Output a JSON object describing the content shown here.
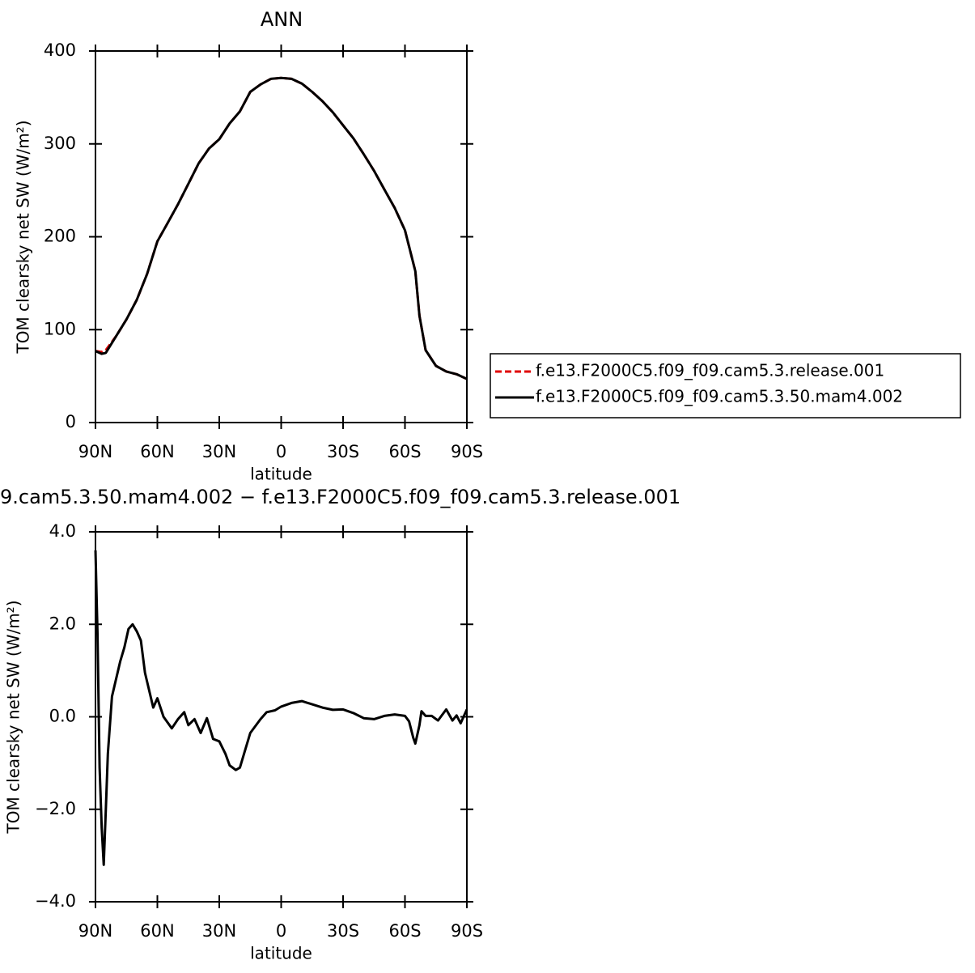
{
  "chart_data": [
    {
      "type": "line",
      "title": "ANN",
      "xlabel": "latitude",
      "ylabel": "TOM clearsky net SW (W/m²)",
      "x": [
        90,
        87,
        85,
        80,
        75,
        70,
        65,
        60,
        55,
        50,
        45,
        40,
        35,
        30,
        25,
        20,
        15,
        10,
        5,
        0,
        -5,
        -10,
        -15,
        -20,
        -25,
        -30,
        -35,
        -40,
        -45,
        -50,
        -55,
        -60,
        -65,
        -67,
        -70,
        -75,
        -80,
        -85,
        -90
      ],
      "series": [
        {
          "name": "f.e13.F2000C5.f09_f09.cam5.3.release.001",
          "color": "#e00000",
          "dash": true,
          "values": [
            77,
            76,
            78,
            93,
            111,
            132,
            160,
            195,
            215,
            235,
            257,
            279,
            295,
            305,
            322,
            335,
            356,
            364,
            370,
            371,
            370,
            365,
            356,
            346,
            334,
            320,
            306,
            289,
            271,
            251,
            231,
            207,
            163,
            115,
            78,
            61,
            55,
            52,
            47
          ]
        },
        {
          "name": "f.e13.F2000C5.f09_f09.cam5.3.50.mam4.002",
          "color": "#000000",
          "dash": false,
          "values": [
            77,
            74,
            75,
            93,
            111,
            132,
            160,
            195,
            215,
            235,
            257,
            279,
            295,
            305,
            322,
            335,
            356,
            364,
            370,
            371,
            370,
            365,
            356,
            346,
            334,
            320,
            306,
            289,
            271,
            251,
            231,
            207,
            163,
            115,
            78,
            61,
            55,
            52,
            47
          ]
        }
      ],
      "xlim": [
        90,
        -90
      ],
      "xticks": [
        {
          "value": 90,
          "label": "90N"
        },
        {
          "value": 60,
          "label": "60N"
        },
        {
          "value": 30,
          "label": "30N"
        },
        0,
        {
          "value": -30,
          "label": "30S"
        },
        {
          "value": -60,
          "label": "60S"
        },
        {
          "value": -90,
          "label": "90S"
        }
      ],
      "ylim": [
        0,
        400
      ],
      "yticks": [
        0,
        100,
        200,
        300,
        400
      ],
      "legend": "right"
    },
    {
      "type": "line",
      "title": "9.cam5.3.50.mam4.002 − f.e13.F2000C5.f09_f09.cam5.3.release.001",
      "xlabel": "latitude",
      "ylabel": "TOM clearsky net SW (W/m²)",
      "x": [
        90,
        89,
        88,
        87,
        86,
        85,
        84,
        82,
        78,
        76,
        74,
        72,
        70,
        68,
        66,
        62,
        60,
        57,
        53,
        50,
        47,
        45,
        42,
        39,
        36,
        33,
        30,
        27,
        25,
        22,
        20,
        18,
        15,
        10,
        7,
        3,
        0,
        -5,
        -10,
        -15,
        -20,
        -25,
        -30,
        -35,
        -40,
        -45,
        -50,
        -55,
        -60,
        -62,
        -64,
        -65,
        -67,
        -68,
        -70,
        -73,
        -76,
        -80,
        -83,
        -85,
        -87,
        -90
      ],
      "series": [
        {
          "color": "#000000",
          "dash": false,
          "values": [
            3.6,
            1.8,
            -1.1,
            -2.4,
            -3.2,
            -2.0,
            -0.8,
            0.44,
            1.2,
            1.5,
            1.9,
            2.0,
            1.85,
            1.65,
            0.95,
            0.2,
            0.4,
            0,
            -0.25,
            -0.05,
            0.1,
            -0.18,
            -0.05,
            -0.35,
            -0.03,
            -0.48,
            -0.53,
            -0.8,
            -1.05,
            -1.15,
            -1.1,
            -0.8,
            -0.35,
            -0.05,
            0.1,
            0.14,
            0.22,
            0.3,
            0.34,
            0.27,
            0.2,
            0.15,
            0.16,
            0.08,
            -0.03,
            -0.05,
            0.02,
            0.05,
            0.02,
            -0.1,
            -0.45,
            -0.58,
            -0.18,
            0.12,
            0.02,
            0.02,
            -0.08,
            0.16,
            -0.08,
            0.03,
            -0.14,
            0.16
          ]
        }
      ],
      "xlim": [
        90,
        -90
      ],
      "xticks": [
        {
          "value": 90,
          "label": "90N"
        },
        {
          "value": 60,
          "label": "60N"
        },
        {
          "value": 30,
          "label": "30N"
        },
        0,
        {
          "value": -30,
          "label": "30S"
        },
        {
          "value": -60,
          "label": "60S"
        },
        {
          "value": -90,
          "label": "90S"
        }
      ],
      "ylim": [
        -4,
        4
      ],
      "yticks": [
        {
          "value": -4,
          "label": "−4.0"
        },
        {
          "value": -2,
          "label": "−2.0"
        },
        {
          "value": 0,
          "label": "0.0"
        },
        {
          "value": 2,
          "label": "2.0"
        },
        {
          "value": 4,
          "label": "4.0"
        }
      ]
    }
  ]
}
